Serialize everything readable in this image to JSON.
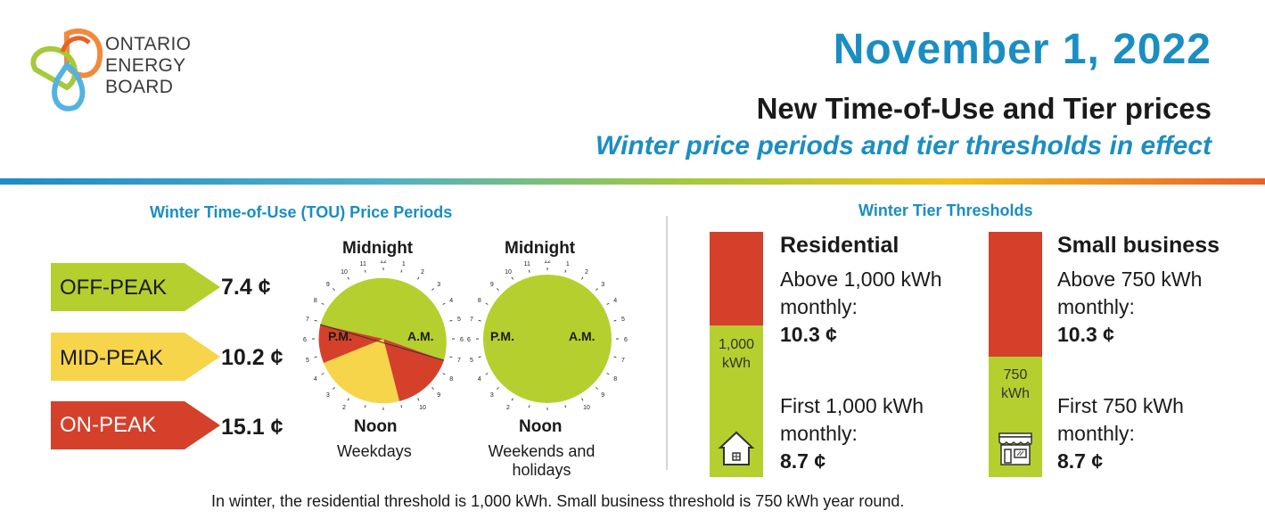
{
  "logo": {
    "lines": [
      "ONTARIO",
      "ENERGY",
      "BOARD"
    ]
  },
  "header": {
    "date": "November 1, 2022",
    "title": "New Time-of-Use and Tier prices",
    "subtitle": "Winter price periods and tier thresholds in effect"
  },
  "tou": {
    "heading": "Winter Time-of-Use (TOU) Price Periods",
    "periods": [
      {
        "label": "OFF-PEAK",
        "price": "7.4 ¢",
        "color": "#b5cf2e"
      },
      {
        "label": "MID-PEAK",
        "price": "10.2 ¢",
        "color": "#f7d54a"
      },
      {
        "label": "ON-PEAK",
        "price": "15.1 ¢",
        "color": "#d5402b"
      }
    ],
    "clocks": [
      {
        "top": "Midnight",
        "bottom": "Noon",
        "caption": "Weekdays",
        "pm": "P.M.",
        "am": "A.M."
      },
      {
        "top": "Midnight",
        "bottom": "Noon",
        "caption": "Weekends and holidays",
        "pm": "P.M.",
        "am": "A.M."
      }
    ],
    "inner_numbers": [
      "12",
      "1",
      "2",
      "3",
      "4",
      "5",
      "6",
      "7",
      "8",
      "9",
      "10",
      "11"
    ],
    "outer_numbers": [
      "7",
      "5"
    ],
    "outer_numbers_right": [
      "7"
    ]
  },
  "tiers": {
    "heading": "Winter Tier Thresholds",
    "residential": {
      "name": "Residential",
      "above": "Above 1,000 kWh",
      "above2": "monthly:",
      "above_price": "10.3 ¢",
      "first": "First 1,000 kWh",
      "first2": "monthly:",
      "first_price": "8.7 ¢",
      "bar_label_1": "1,000",
      "bar_label_2": "kWh"
    },
    "small_business": {
      "name": "Small business",
      "above": "Above 750 kWh",
      "above2": "monthly:",
      "above_price": "10.3 ¢",
      "first": "First 750 kWh",
      "first2": "monthly:",
      "first_price": "8.7 ¢",
      "bar_label_1": "750",
      "bar_label_2": "kWh"
    }
  },
  "footer": "In winter, the residential threshold is 1,000 kWh. Small business threshold is 750 kWh year round.",
  "colors": {
    "blue": "#1a8ec2",
    "green": "#b5cf2e",
    "yellow": "#f7d54a",
    "red": "#d5402b"
  }
}
